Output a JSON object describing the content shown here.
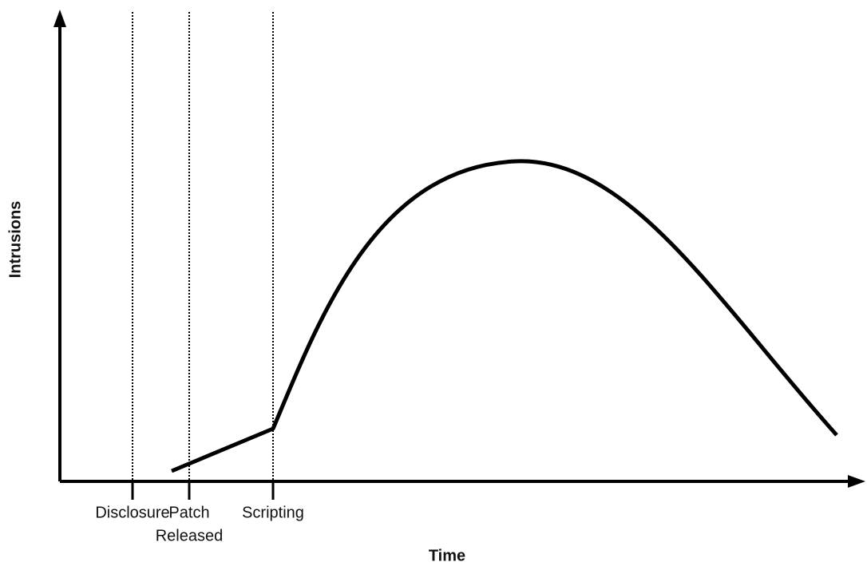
{
  "diagram": {
    "x_axis_label": "Time",
    "y_axis_label": "Intrusions",
    "events": [
      {
        "lines": [
          "Disclosure"
        ]
      },
      {
        "lines": [
          "Patch",
          "Released"
        ]
      },
      {
        "lines": [
          "Scripting"
        ]
      }
    ]
  }
}
